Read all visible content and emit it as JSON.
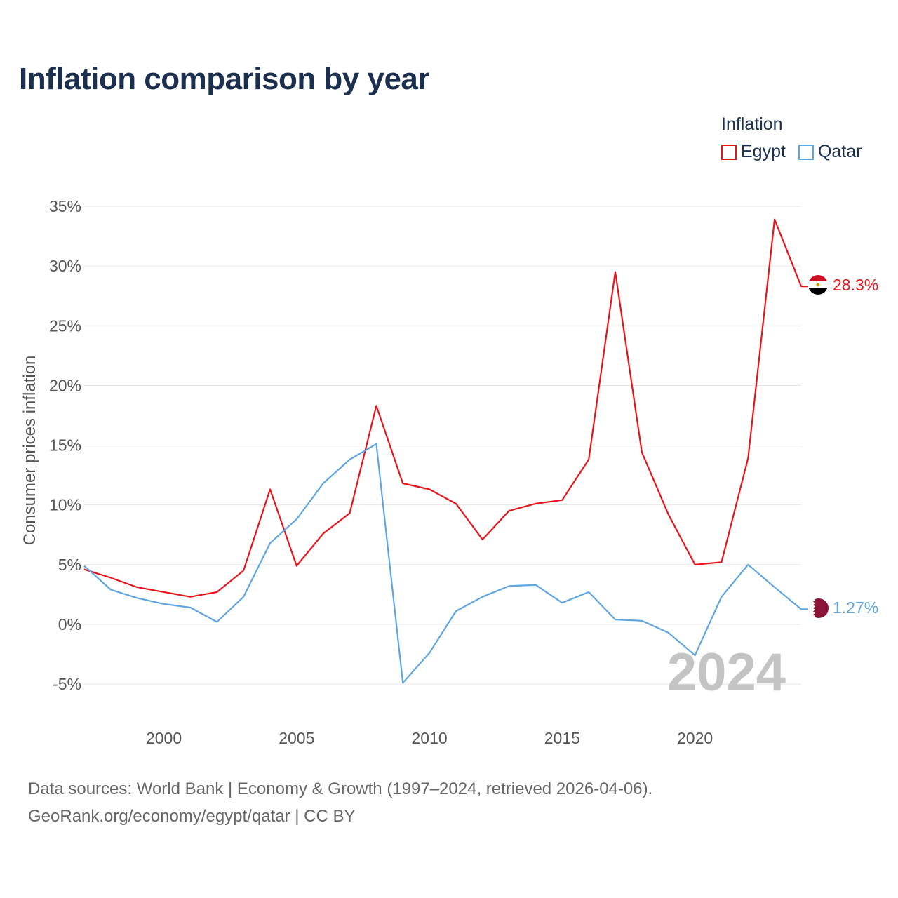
{
  "title": "Inflation comparison by year",
  "legend": {
    "title": "Inflation",
    "items": [
      {
        "name": "Egypt",
        "color": "#e8141b"
      },
      {
        "name": "Qatar",
        "color": "#5fa5e2"
      }
    ]
  },
  "footer": {
    "line1": "Data sources: World Bank | Economy & Growth (1997–2024, retrieved 2026-04-06).",
    "line2": "GeoRank.org/economy/egypt/qatar | CC BY"
  },
  "chart_data": {
    "type": "line",
    "title": "Inflation comparison by year",
    "xlabel": "",
    "ylabel": "Consumer prices inflation",
    "xlim": [
      1997,
      2024
    ],
    "ylim": [
      -5,
      35
    ],
    "y_ticks": [
      -5,
      0,
      5,
      10,
      15,
      20,
      25,
      30,
      35
    ],
    "y_tick_labels": [
      "-5%",
      "0%",
      "5%",
      "10%",
      "15%",
      "20%",
      "25%",
      "30%",
      "35%"
    ],
    "x_ticks": [
      2000,
      2005,
      2010,
      2015,
      2020
    ],
    "x_tick_labels": [
      "2000",
      "2005",
      "2010",
      "2015",
      "2020"
    ],
    "grid": true,
    "watermark": "2024",
    "x": [
      1997,
      1998,
      1999,
      2000,
      2001,
      2002,
      2003,
      2004,
      2005,
      2006,
      2007,
      2008,
      2009,
      2010,
      2011,
      2012,
      2013,
      2014,
      2015,
      2016,
      2017,
      2018,
      2019,
      2020,
      2021,
      2022,
      2023,
      2024
    ],
    "series": [
      {
        "name": "Egypt",
        "color": "#e8141b",
        "values": [
          4.6,
          3.9,
          3.1,
          2.7,
          2.3,
          2.7,
          4.5,
          11.3,
          4.9,
          7.6,
          9.3,
          18.3,
          11.8,
          11.3,
          10.1,
          7.1,
          9.5,
          10.1,
          10.4,
          13.8,
          29.5,
          14.4,
          9.2,
          5.0,
          5.2,
          13.9,
          33.9,
          28.3
        ],
        "end_label": "28.3%"
      },
      {
        "name": "Qatar",
        "color": "#5fa5e2",
        "values": [
          4.9,
          2.9,
          2.2,
          1.7,
          1.4,
          0.2,
          2.3,
          6.8,
          8.8,
          11.8,
          13.8,
          15.1,
          -4.9,
          -2.4,
          1.1,
          2.3,
          3.2,
          3.3,
          1.8,
          2.7,
          0.4,
          0.3,
          -0.7,
          -2.6,
          2.3,
          5.0,
          3.1,
          1.27
        ],
        "end_label": "1.27%"
      }
    ]
  }
}
